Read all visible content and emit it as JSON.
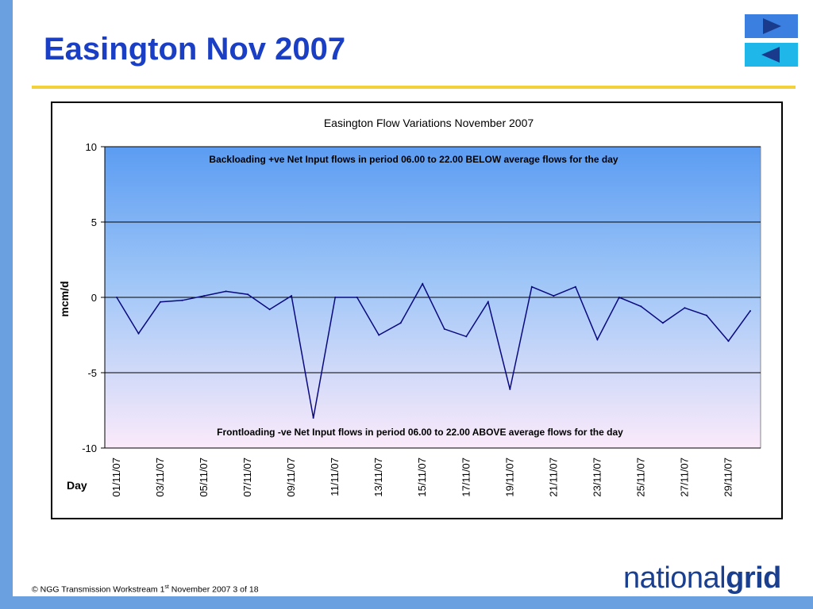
{
  "slide": {
    "title": "Easington Nov 2007",
    "footer_prefix": "© NGG Transmission Workstream 1",
    "footer_sup": "st",
    "footer_suffix": " November 2007 3 of 18",
    "logo_regular": "national",
    "logo_bold": "grid",
    "nav_next_icon": "play-right-icon",
    "nav_prev_icon": "play-left-icon"
  },
  "chart_data": {
    "type": "line",
    "title": "Easington Flow Variations November 2007",
    "xlabel": "Day",
    "ylabel": "mcm/d",
    "ylim": [
      -10,
      10
    ],
    "yticks": [
      10,
      5,
      0,
      -5,
      -10
    ],
    "grid": true,
    "legend": "none",
    "x": [
      "01/11/07",
      "02/11/07",
      "03/11/07",
      "04/11/07",
      "05/11/07",
      "06/11/07",
      "07/11/07",
      "08/11/07",
      "09/11/07",
      "10/11/07",
      "11/11/07",
      "12/11/07",
      "13/11/07",
      "14/11/07",
      "15/11/07",
      "16/11/07",
      "17/11/07",
      "18/11/07",
      "19/11/07",
      "20/11/07",
      "21/11/07",
      "22/11/07",
      "23/11/07",
      "24/11/07",
      "25/11/07",
      "26/11/07",
      "27/11/07",
      "28/11/07",
      "29/11/07",
      "30/11/07"
    ],
    "xtick_labels": [
      "01/11/07",
      "03/11/07",
      "05/11/07",
      "07/11/07",
      "09/11/07",
      "11/11/07",
      "13/11/07",
      "15/11/07",
      "17/11/07",
      "19/11/07",
      "21/11/07",
      "23/11/07",
      "25/11/07",
      "27/11/07",
      "29/11/07"
    ],
    "series": [
      {
        "values": [
          0.0,
          -2.4,
          -0.3,
          -0.2,
          0.1,
          0.4,
          0.2,
          -0.8,
          0.1,
          -8.0,
          0.0,
          0.0,
          -2.5,
          -1.7,
          0.9,
          -2.1,
          -2.6,
          -0.3,
          -6.1,
          0.7,
          0.1,
          0.7,
          -2.8,
          0.0,
          -0.6,
          -1.7,
          -0.7,
          -1.2,
          -2.9,
          -0.9
        ]
      }
    ],
    "annotations": [
      "Backloading +ve Net Input flows in period 06.00 to 22.00 BELOW average flows for the day",
      "Frontloading -ve Net Input flows in period 06.00 to 22.00 ABOVE average flows for the day"
    ],
    "colors": {
      "line": "#0a0a80",
      "bg_top": "#5b9cf2",
      "bg_mid": "#9fc6f7",
      "bg_bottom": "#fbeafa"
    }
  }
}
